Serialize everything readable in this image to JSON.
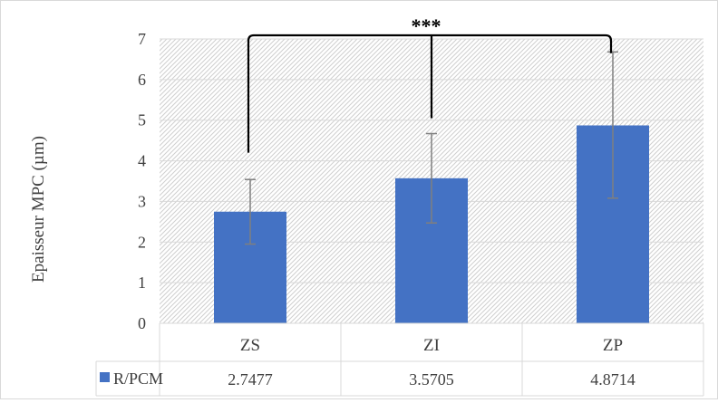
{
  "chart_data": {
    "type": "bar",
    "categories": [
      "ZS",
      "ZI",
      "ZP"
    ],
    "series": [
      {
        "name": "R/PCM",
        "values": [
          2.7477,
          3.5705,
          4.8714
        ],
        "error_low": [
          1.95,
          2.47,
          3.08
        ],
        "error_high": [
          3.54,
          4.67,
          6.68
        ],
        "value_labels": [
          "2.7477",
          "3.5705",
          "4.8714"
        ]
      }
    ],
    "title": "",
    "xlabel": "",
    "ylabel": "Epaisseur MPC (µm)",
    "ylim": [
      0,
      7
    ],
    "yticks": [
      "0",
      "1",
      "2",
      "3",
      "4",
      "5",
      "6",
      "7"
    ],
    "grid": true,
    "legend": "data-table",
    "significance": {
      "label": "***",
      "groups": [
        "ZS",
        "ZI",
        "ZP"
      ]
    },
    "colors": {
      "bar": "#4472c4",
      "error_bar": "#7f7f7f",
      "hatch": "#d9d9d9",
      "table_border": "#d9d9d9",
      "bracket": "#000000",
      "text": "#404040"
    }
  }
}
